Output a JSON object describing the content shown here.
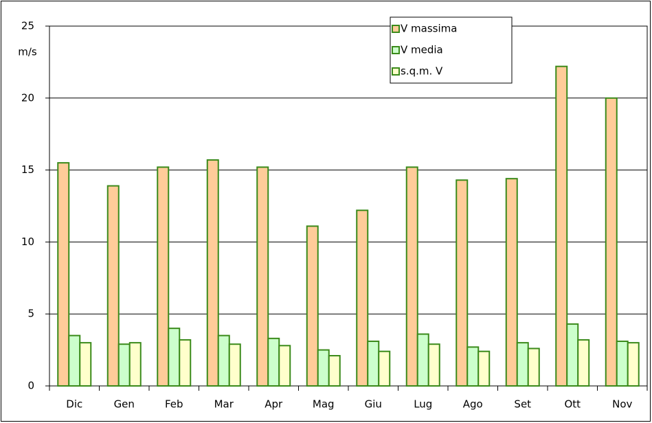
{
  "chart_data": {
    "type": "bar",
    "y_label": "m/s",
    "categories": [
      "Dic",
      "Gen",
      "Feb",
      "Mar",
      "Apr",
      "Mag",
      "Giu",
      "Lug",
      "Ago",
      "Set",
      "Ott",
      "Nov"
    ],
    "series": [
      {
        "name": "V massima",
        "color": "#ffcc99",
        "values": [
          15.5,
          13.9,
          15.2,
          15.7,
          15.2,
          11.1,
          12.2,
          15.2,
          14.3,
          14.4,
          22.2,
          20.0
        ]
      },
      {
        "name": "V media",
        "color": "#ccffcc",
        "values": [
          3.5,
          2.9,
          4.0,
          3.5,
          3.3,
          2.5,
          3.1,
          3.6,
          2.7,
          3.0,
          4.3,
          3.1
        ]
      },
      {
        "name": "s.q.m. V",
        "color": "#ffffcc",
        "values": [
          3.0,
          3.0,
          3.2,
          2.9,
          2.8,
          2.1,
          2.4,
          2.9,
          2.4,
          2.6,
          3.2,
          3.0
        ]
      }
    ],
    "bar_edge_color": "#3a8a1a",
    "ylim": [
      0,
      25
    ],
    "yticks": [
      0,
      5,
      10,
      15,
      20,
      25
    ],
    "grid": true,
    "legend": "top-right"
  }
}
